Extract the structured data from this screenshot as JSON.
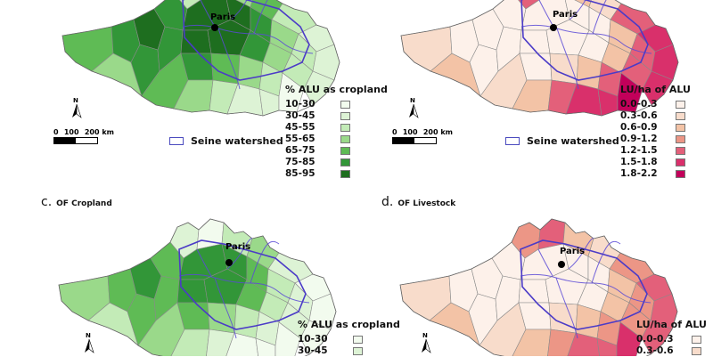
{
  "panels": {
    "a": {
      "letter": "",
      "name": "",
      "palette": [
        "#f2fbee",
        "#ddf3d5",
        "#c3ebb7",
        "#9ad98a",
        "#5fbb55",
        "#329638",
        "#1e6e1f"
      ],
      "legend": {
        "title": "% ALU as cropland",
        "classes": [
          "10-30",
          "30-45",
          "45-55",
          "55-65",
          "65-75",
          "75-85",
          "85-95"
        ],
        "colors": [
          "#f2fbee",
          "#ddf3d5",
          "#c3ebb7",
          "#9ad98a",
          "#5fbb55",
          "#329638",
          "#1e6e1f"
        ]
      },
      "scale": {
        "labels": [
          "0",
          "100",
          "200 km"
        ]
      },
      "watershed_label": "Seine watershed",
      "city": "Paris"
    },
    "b": {
      "letter": "",
      "name": "",
      "palette": [
        "#fdf1ea",
        "#f8dccb",
        "#f3c3a6",
        "#ec9686",
        "#e3607a",
        "#d9306b",
        "#c2005a"
      ],
      "legend": {
        "title": "LU/ha of ALU",
        "classes": [
          "0.0-0.3",
          "0.3-0.6",
          "0.6-0.9",
          "0.9-1.2",
          "1.2-1.5",
          "1.5-1.8",
          "1.8-2.2"
        ],
        "colors": [
          "#fdf1ea",
          "#f8dccb",
          "#f3c3a6",
          "#ec9686",
          "#e3607a",
          "#d9306b",
          "#c2005a"
        ]
      },
      "scale": {
        "labels": [
          "0",
          "100",
          "200 km"
        ]
      },
      "watershed_label": "Seine watershed",
      "city": "Paris"
    },
    "c": {
      "letter": "c.",
      "name": "OF Cropland",
      "palette": [
        "#f2fbee",
        "#ddf3d5",
        "#c3ebb7",
        "#9ad98a",
        "#5fbb55",
        "#329638",
        "#1e6e1f"
      ],
      "legend": {
        "title": "% ALU as cropland",
        "classes": [
          "10-30",
          "30-45"
        ],
        "colors": [
          "#f2fbee",
          "#ddf3d5"
        ]
      },
      "city": "Paris"
    },
    "d": {
      "letter": "d.",
      "name": "OF Livestock",
      "palette": [
        "#fdf1ea",
        "#f8dccb",
        "#f3c3a6",
        "#ec9686",
        "#e3607a",
        "#d9306b",
        "#c2005a"
      ],
      "legend": {
        "title": "LU/ha of ALU",
        "classes": [
          "0.0-0.3",
          "0.3-0.6"
        ],
        "colors": [
          "#fdf1ea",
          "#f8dccb"
        ]
      },
      "city": "Paris"
    }
  }
}
